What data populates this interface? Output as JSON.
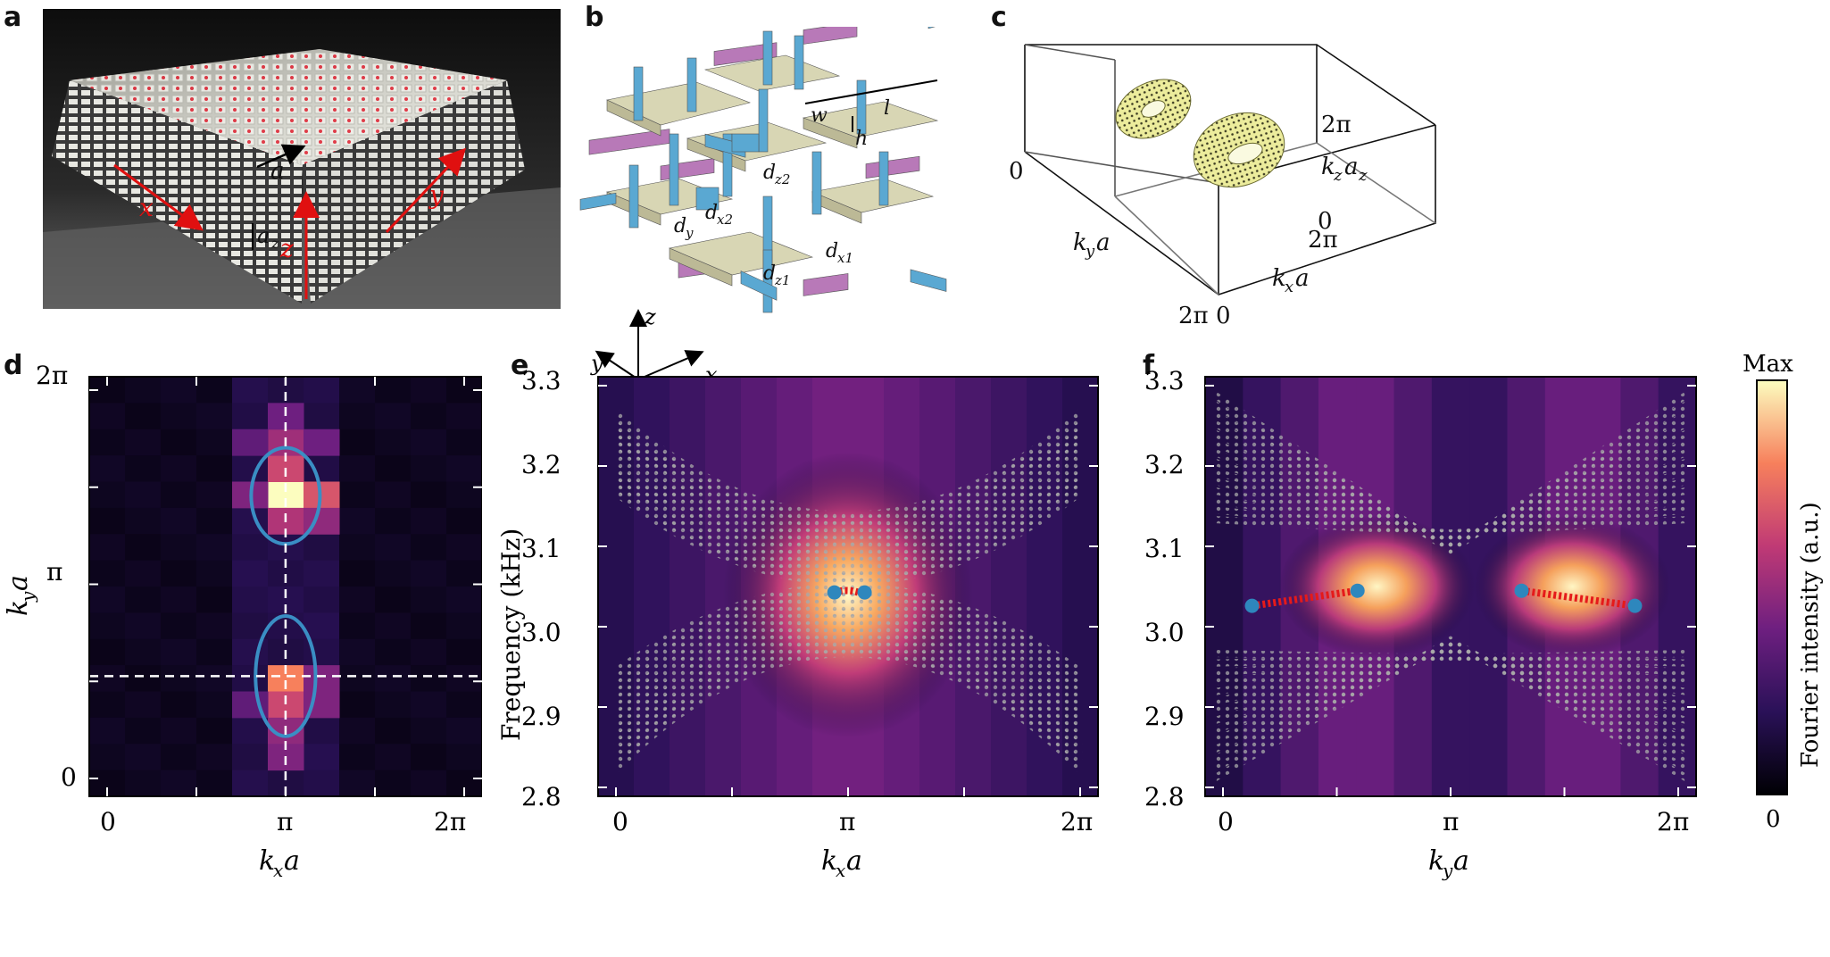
{
  "panels": {
    "a": {
      "label": "a",
      "annotations": {
        "a": "a",
        "az": "a",
        "az_sub": "z",
        "x": "x",
        "y": "y",
        "z": "z"
      }
    },
    "b": {
      "label": "b",
      "axes": {
        "z": "z",
        "y": "y",
        "x": "x"
      },
      "dims": {
        "w": "w",
        "l": "l",
        "h": "h",
        "dz2": "d",
        "dz2_sub": "z2",
        "dx2": "d",
        "dx2_sub": "x2",
        "dy": "d",
        "dy_sub": "y",
        "dz1": "d",
        "dz1_sub": "z1",
        "dx1": "d",
        "dx1_sub": "x1"
      }
    },
    "c": {
      "label": "c",
      "ticks": {
        "twopi_top": "2π",
        "zero_left": "0",
        "zero_z": "0",
        "twopi_x": "2π",
        "twopi_bottom": "2π",
        "zero_bottom": "0"
      },
      "axes": {
        "kza": "k",
        "kza_sub1": "z",
        "kza_a": "a",
        "kza_sub2": "z",
        "kya": "k",
        "kya_sub": "y",
        "kya_a": "a",
        "kxa": "k",
        "kxa_sub": "x",
        "kxa_a": "a"
      }
    },
    "d": {
      "label": "d",
      "xlabel": "k",
      "xlabel_sub": "x",
      "xlabel_a": "a",
      "ylabel": "k",
      "ylabel_sub": "y",
      "ylabel_a": "a",
      "xticks": [
        "0",
        "π",
        "2π"
      ],
      "yticks": [
        "0",
        "π",
        "2π"
      ]
    },
    "e": {
      "label": "e",
      "ylabel": "Frequency (kHz)",
      "xlabel": "k",
      "xlabel_sub": "x",
      "xlabel_a": "a",
      "xticks": [
        "0",
        "π",
        "2π"
      ],
      "yticks": [
        "2.8",
        "2.9",
        "3.0",
        "3.1",
        "3.2",
        "3.3"
      ]
    },
    "f": {
      "label": "f",
      "xlabel": "k",
      "xlabel_sub": "y",
      "xlabel_a": "a",
      "xticks": [
        "0",
        "π",
        "2π"
      ],
      "yticks": [
        "2.8",
        "2.9",
        "3.0",
        "3.1",
        "3.2",
        "3.3"
      ]
    }
  },
  "colorbar": {
    "max_label": "Max",
    "min_label": "0",
    "title": "Fourier intensity (a.u.)"
  },
  "chart_data": [
    {
      "type": "heatmap",
      "panel": "d",
      "x_range": [
        0,
        6.2832
      ],
      "y_range": [
        0,
        6.2832
      ],
      "cells": [
        {
          "col": 5,
          "row": 4,
          "v": 1.0
        },
        {
          "col": 5,
          "row": 3,
          "v": 0.55
        },
        {
          "col": 6,
          "row": 4,
          "v": 0.6
        },
        {
          "col": 5,
          "row": 5,
          "v": 0.45
        },
        {
          "col": 4,
          "row": 4,
          "v": 0.3
        },
        {
          "col": 6,
          "row": 5,
          "v": 0.35
        },
        {
          "col": 5,
          "row": 11,
          "v": 0.75
        },
        {
          "col": 5,
          "row": 12,
          "v": 0.55
        },
        {
          "col": 5,
          "row": 13,
          "v": 0.35
        },
        {
          "col": 5,
          "row": 14,
          "v": 0.3
        },
        {
          "col": 6,
          "row": 11,
          "v": 0.3
        },
        {
          "col": 6,
          "row": 12,
          "v": 0.3
        },
        {
          "col": 4,
          "row": 12,
          "v": 0.2
        },
        {
          "col": 5,
          "row": 2,
          "v": 0.4
        },
        {
          "col": 5,
          "row": 1,
          "v": 0.25
        },
        {
          "col": 6,
          "row": 2,
          "v": 0.25
        },
        {
          "col": 4,
          "row": 2,
          "v": 0.2
        }
      ],
      "contours": [
        {
          "center": [
            3.14,
            1.8
          ],
          "rx": 0.48,
          "ry": 0.9
        },
        {
          "center": [
            3.14,
            4.5
          ],
          "rx": 0.55,
          "ry": 0.72
        }
      ],
      "dashed_lines": {
        "x": 3.14,
        "y": 1.8
      }
    },
    {
      "type": "heatmap",
      "panel": "e",
      "x_range": [
        0,
        6.2832
      ],
      "y_range": [
        2.8,
        3.3
      ],
      "hot_spot": {
        "x": 3.14,
        "y": 3.04
      },
      "arc_points": [
        [
          2.97,
          3.043
        ],
        [
          3.14,
          3.048
        ],
        [
          3.3,
          3.042
        ]
      ],
      "endpoints": [
        [
          2.97,
          3.043
        ],
        [
          3.35,
          3.043
        ]
      ]
    },
    {
      "type": "heatmap",
      "panel": "f",
      "x_range": [
        0,
        6.2832
      ],
      "y_range": [
        2.8,
        3.3
      ],
      "hot_spots": [
        {
          "x": 2.2,
          "y": 3.05
        },
        {
          "x": 4.7,
          "y": 3.05
        }
      ],
      "segments": [
        [
          [
            0.6,
            3.027
          ],
          [
            1.95,
            3.045
          ]
        ],
        [
          [
            4.05,
            3.045
          ],
          [
            5.5,
            3.027
          ]
        ]
      ],
      "endpoints": [
        [
          0.6,
          3.027
        ],
        [
          1.95,
          3.045
        ],
        [
          4.05,
          3.045
        ],
        [
          5.5,
          3.027
        ]
      ]
    }
  ]
}
